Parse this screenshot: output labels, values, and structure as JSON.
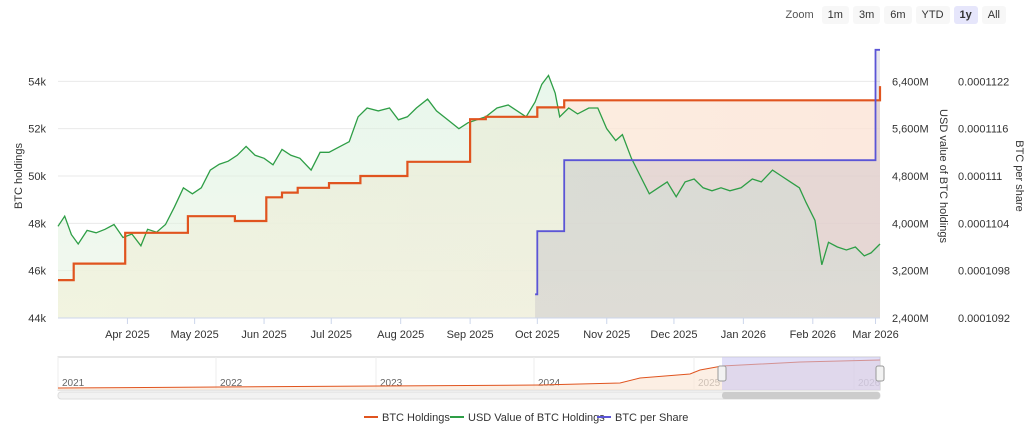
{
  "zoom": {
    "label": "Zoom",
    "buttons": [
      {
        "label": "1m",
        "active": false
      },
      {
        "label": "3m",
        "active": false
      },
      {
        "label": "6m",
        "active": false
      },
      {
        "label": "YTD",
        "active": false
      },
      {
        "label": "1y",
        "active": true
      },
      {
        "label": "All",
        "active": false
      }
    ]
  },
  "colors": {
    "holdings": "#e0541f",
    "usd_value": "#2e9e46",
    "per_share": "#5b55d6",
    "navigator_fill": "#c8c5f3"
  },
  "chart_data": {
    "type": "line",
    "x_range": [
      "2025-03-01",
      "2026-03-03"
    ],
    "x_ticks": [
      {
        "date": "2025-04-01",
        "label": "Apr 2025"
      },
      {
        "date": "2025-05-01",
        "label": "May 2025"
      },
      {
        "date": "2025-06-01",
        "label": "Jun 2025"
      },
      {
        "date": "2025-07-01",
        "label": "Jul 2025"
      },
      {
        "date": "2025-08-01",
        "label": "Aug 2025"
      },
      {
        "date": "2025-09-01",
        "label": "Sep 2025"
      },
      {
        "date": "2025-10-01",
        "label": "Oct 2025"
      },
      {
        "date": "2025-11-01",
        "label": "Nov 2025"
      },
      {
        "date": "2025-12-01",
        "label": "Dec 2025"
      },
      {
        "date": "2026-01-01",
        "label": "Jan 2026"
      },
      {
        "date": "2026-02-01",
        "label": "Feb 2026"
      },
      {
        "date": "2026-03-01",
        "label": "Mar 2026"
      }
    ],
    "axes": {
      "left": {
        "title": "BTC holdings",
        "range": [
          44000,
          56000
        ],
        "ticks": [
          {
            "value": 44000,
            "label": "44k"
          },
          {
            "value": 46000,
            "label": "46k"
          },
          {
            "value": 48000,
            "label": "48k"
          },
          {
            "value": 50000,
            "label": "50k"
          },
          {
            "value": 52000,
            "label": "52k"
          },
          {
            "value": 54000,
            "label": "54k"
          }
        ]
      },
      "usd": {
        "title": "USD value of BTC holdings",
        "range": [
          2400,
          7200
        ],
        "ticks": [
          {
            "value": 2400,
            "label": "2,400M"
          },
          {
            "value": 3200,
            "label": "3,200M"
          },
          {
            "value": 4000,
            "label": "4,000M"
          },
          {
            "value": 4800,
            "label": "4,800M"
          },
          {
            "value": 5600,
            "label": "5,600M"
          },
          {
            "value": 6400,
            "label": "6,400M"
          }
        ]
      },
      "per_share": {
        "title": "BTC per share",
        "range": [
          0.0001092,
          0.0001128
        ],
        "ticks": [
          {
            "value": 0.0001092,
            "label": "0.0001092"
          },
          {
            "value": 0.0001098,
            "label": "0.0001098"
          },
          {
            "value": 0.0001104,
            "label": "0.0001104"
          },
          {
            "value": 0.000111,
            "label": "0.000111"
          },
          {
            "value": 0.0001116,
            "label": "0.0001116"
          },
          {
            "value": 0.0001122,
            "label": "0.0001122"
          }
        ]
      }
    },
    "series": [
      {
        "name": "BTC Holdings",
        "axis": "left",
        "step": true,
        "points": [
          [
            "2025-03-01",
            45600
          ],
          [
            "2025-03-08",
            46300
          ],
          [
            "2025-03-31",
            47600
          ],
          [
            "2025-04-28",
            48300
          ],
          [
            "2025-05-19",
            48100
          ],
          [
            "2025-06-02",
            49100
          ],
          [
            "2025-06-09",
            49300
          ],
          [
            "2025-06-16",
            49500
          ],
          [
            "2025-06-30",
            49700
          ],
          [
            "2025-07-14",
            50000
          ],
          [
            "2025-07-28",
            50000
          ],
          [
            "2025-08-04",
            50600
          ],
          [
            "2025-08-25",
            50600
          ],
          [
            "2025-09-01",
            52400
          ],
          [
            "2025-09-08",
            52500
          ],
          [
            "2025-09-29",
            52500
          ],
          [
            "2025-10-01",
            52900
          ],
          [
            "2025-10-13",
            53200
          ],
          [
            "2026-03-01",
            53200
          ],
          [
            "2026-03-03",
            53800
          ]
        ]
      },
      {
        "name": "USD Value of BTC Holdings",
        "axis": "usd",
        "step": false,
        "points": [
          [
            "2025-03-01",
            3950
          ],
          [
            "2025-03-04",
            4120
          ],
          [
            "2025-03-07",
            3810
          ],
          [
            "2025-03-10",
            3650
          ],
          [
            "2025-03-14",
            3880
          ],
          [
            "2025-03-18",
            3840
          ],
          [
            "2025-03-22",
            3900
          ],
          [
            "2025-03-26",
            3980
          ],
          [
            "2025-03-30",
            3760
          ],
          [
            "2025-04-03",
            3820
          ],
          [
            "2025-04-07",
            3620
          ],
          [
            "2025-04-10",
            3900
          ],
          [
            "2025-04-14",
            3850
          ],
          [
            "2025-04-18",
            3980
          ],
          [
            "2025-04-22",
            4280
          ],
          [
            "2025-04-26",
            4600
          ],
          [
            "2025-04-30",
            4500
          ],
          [
            "2025-05-04",
            4600
          ],
          [
            "2025-05-08",
            4900
          ],
          [
            "2025-05-12",
            5000
          ],
          [
            "2025-05-16",
            5050
          ],
          [
            "2025-05-20",
            5150
          ],
          [
            "2025-05-24",
            5300
          ],
          [
            "2025-05-28",
            5150
          ],
          [
            "2025-06-01",
            5100
          ],
          [
            "2025-06-05",
            4990
          ],
          [
            "2025-06-09",
            5250
          ],
          [
            "2025-06-13",
            5150
          ],
          [
            "2025-06-17",
            5100
          ],
          [
            "2025-06-22",
            4900
          ],
          [
            "2025-06-26",
            5200
          ],
          [
            "2025-06-30",
            5200
          ],
          [
            "2025-07-04",
            5280
          ],
          [
            "2025-07-09",
            5380
          ],
          [
            "2025-07-13",
            5800
          ],
          [
            "2025-07-17",
            5950
          ],
          [
            "2025-07-22",
            5900
          ],
          [
            "2025-07-27",
            5950
          ],
          [
            "2025-07-31",
            5750
          ],
          [
            "2025-08-04",
            5800
          ],
          [
            "2025-08-08",
            5950
          ],
          [
            "2025-08-13",
            6100
          ],
          [
            "2025-08-17",
            5900
          ],
          [
            "2025-08-22",
            5750
          ],
          [
            "2025-08-27",
            5600
          ],
          [
            "2025-08-31",
            5700
          ],
          [
            "2025-09-04",
            5750
          ],
          [
            "2025-09-08",
            5800
          ],
          [
            "2025-09-13",
            5950
          ],
          [
            "2025-09-18",
            6000
          ],
          [
            "2025-09-22",
            5900
          ],
          [
            "2025-09-26",
            5800
          ],
          [
            "2025-09-30",
            6050
          ],
          [
            "2025-10-03",
            6350
          ],
          [
            "2025-10-06",
            6500
          ],
          [
            "2025-10-09",
            6200
          ],
          [
            "2025-10-11",
            5800
          ],
          [
            "2025-10-15",
            5950
          ],
          [
            "2025-10-19",
            5850
          ],
          [
            "2025-10-24",
            5950
          ],
          [
            "2025-10-28",
            5950
          ],
          [
            "2025-11-01",
            5600
          ],
          [
            "2025-11-05",
            5400
          ],
          [
            "2025-11-08",
            5500
          ],
          [
            "2025-11-12",
            5100
          ],
          [
            "2025-11-16",
            4800
          ],
          [
            "2025-11-20",
            4500
          ],
          [
            "2025-11-24",
            4600
          ],
          [
            "2025-11-28",
            4700
          ],
          [
            "2025-12-02",
            4450
          ],
          [
            "2025-12-06",
            4700
          ],
          [
            "2025-12-10",
            4750
          ],
          [
            "2025-12-14",
            4600
          ],
          [
            "2025-12-18",
            4550
          ],
          [
            "2025-12-22",
            4600
          ],
          [
            "2025-12-26",
            4550
          ],
          [
            "2025-12-31",
            4600
          ],
          [
            "2026-01-05",
            4750
          ],
          [
            "2026-01-09",
            4700
          ],
          [
            "2026-01-14",
            4900
          ],
          [
            "2026-01-18",
            4800
          ],
          [
            "2026-01-22",
            4700
          ],
          [
            "2026-01-26",
            4600
          ],
          [
            "2026-01-29",
            4350
          ],
          [
            "2026-02-02",
            4050
          ],
          [
            "2026-02-05",
            3300
          ],
          [
            "2026-02-08",
            3680
          ],
          [
            "2026-02-12",
            3600
          ],
          [
            "2026-02-16",
            3550
          ],
          [
            "2026-02-20",
            3600
          ],
          [
            "2026-02-24",
            3450
          ],
          [
            "2026-02-27",
            3500
          ],
          [
            "2026-03-03",
            3650
          ]
        ]
      },
      {
        "name": "BTC per Share",
        "axis": "per_share",
        "step": true,
        "points": [
          [
            "2025-09-30",
            0.0001095
          ],
          [
            "2025-10-01",
            0.0001103
          ],
          [
            "2025-10-13",
            0.0001112
          ],
          [
            "2026-03-01",
            0.0001112
          ],
          [
            "2026-03-01",
            0.0001126
          ],
          [
            "2026-03-03",
            0.0001126
          ]
        ]
      }
    ]
  },
  "navigator": {
    "labels": [
      "2021",
      "2022",
      "2023",
      "2024",
      "2025",
      "2026"
    ]
  }
}
